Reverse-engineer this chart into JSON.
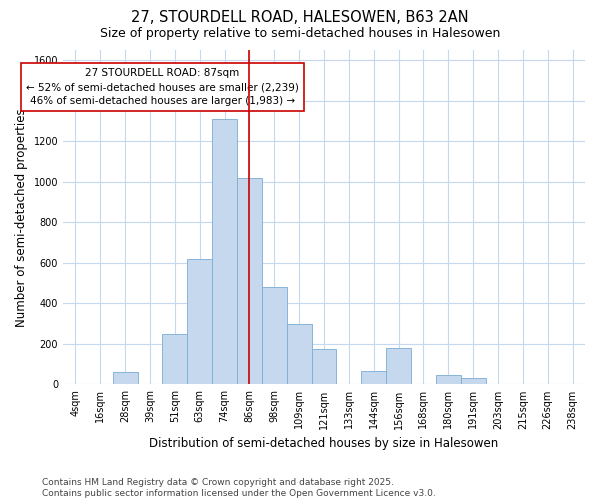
{
  "title": "27, STOURDELL ROAD, HALESOWEN, B63 2AN",
  "subtitle": "Size of property relative to semi-detached houses in Halesowen",
  "xlabel": "Distribution of semi-detached houses by size in Halesowen",
  "ylabel": "Number of semi-detached properties",
  "bin_labels": [
    "4sqm",
    "16sqm",
    "28sqm",
    "39sqm",
    "51sqm",
    "63sqm",
    "74sqm",
    "86sqm",
    "98sqm",
    "109sqm",
    "121sqm",
    "133sqm",
    "144sqm",
    "156sqm",
    "168sqm",
    "180sqm",
    "191sqm",
    "203sqm",
    "215sqm",
    "226sqm",
    "238sqm"
  ],
  "bar_values": [
    3,
    3,
    60,
    3,
    250,
    620,
    1310,
    1020,
    480,
    300,
    175,
    3,
    65,
    180,
    3,
    45,
    30,
    3,
    3,
    3,
    3
  ],
  "bar_color": "#c5d8ee",
  "bar_edge_color": "#7aadd4",
  "property_line_x": 7.0,
  "property_line_color": "#cc0000",
  "annotation_text": "27 STOURDELL ROAD: 87sqm\n← 52% of semi-detached houses are smaller (2,239)\n46% of semi-detached houses are larger (1,983) →",
  "annotation_box_color": "#ffffff",
  "annotation_box_edge_color": "#cc0000",
  "ylim": [
    0,
    1650
  ],
  "yticks": [
    0,
    200,
    400,
    600,
    800,
    1000,
    1200,
    1400,
    1600
  ],
  "footer_text": "Contains HM Land Registry data © Crown copyright and database right 2025.\nContains public sector information licensed under the Open Government Licence v3.0.",
  "background_color": "#ffffff",
  "plot_bg_color": "#ffffff",
  "grid_color": "#c5d8ee",
  "title_fontsize": 10.5,
  "subtitle_fontsize": 9,
  "axis_label_fontsize": 8.5,
  "tick_fontsize": 7,
  "annotation_fontsize": 7.5,
  "footer_fontsize": 6.5
}
